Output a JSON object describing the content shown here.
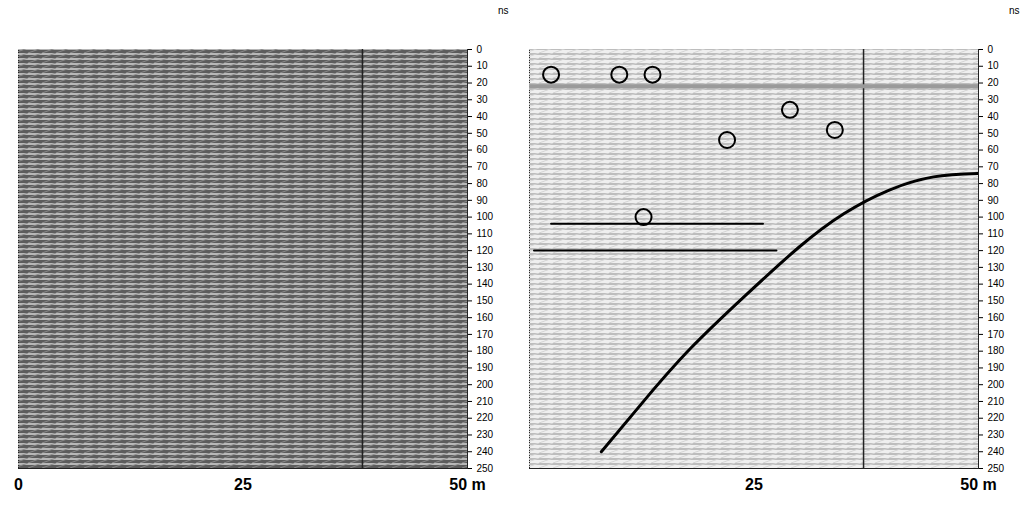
{
  "chart_data": [
    {
      "type": "radargram",
      "color": "#5c5c5c",
      "xlim": [
        0,
        50
      ],
      "xticks": [
        0,
        25,
        {
          "value": 50,
          "label": "50 m"
        }
      ],
      "ylim": [
        0,
        250
      ],
      "yticks": [
        0,
        10,
        20,
        30,
        40,
        50,
        60,
        70,
        80,
        90,
        100,
        110,
        120,
        130,
        140,
        150,
        160,
        170,
        180,
        190,
        200,
        210,
        220,
        230,
        240,
        250
      ],
      "y_label": "ns",
      "vertical_lines": [
        38.3
      ]
    },
    {
      "type": "radargram",
      "color": "#efefef",
      "xlim": [
        0,
        50
      ],
      "xticks": [
        25,
        {
          "value": 50,
          "label": "50 m"
        }
      ],
      "ylim": [
        0,
        250
      ],
      "yticks": [
        0,
        10,
        20,
        30,
        40,
        50,
        60,
        70,
        80,
        90,
        100,
        110,
        120,
        130,
        140,
        150,
        160,
        170,
        180,
        190,
        200,
        210,
        220,
        230,
        240,
        250
      ],
      "y_label": "ns",
      "vertical_lines": [
        37.2
      ],
      "ellipses": {
        "x": [
          2.4,
          10,
          13.7,
          22,
          29,
          34,
          12.7
        ],
        "y": [
          15,
          15,
          15,
          54,
          36,
          48,
          100
        ]
      },
      "lines": [
        {
          "x": [
            0,
            50
          ],
          "y": [
            22,
            22
          ],
          "color": "#9a9a9a"
        },
        {
          "x": [
            2.4,
            26
          ],
          "y": [
            104,
            104
          ],
          "color": "#000000"
        },
        {
          "x": [
            0.5,
            27.5
          ],
          "y": [
            120,
            120
          ],
          "color": "#000000"
        },
        {
          "x": [
            8,
            13,
            18,
            24,
            30,
            35,
            40,
            45,
            50
          ],
          "y": [
            240,
            208,
            178,
            147,
            118,
            98,
            84,
            76,
            74
          ],
          "color": "#000000"
        }
      ]
    }
  ]
}
